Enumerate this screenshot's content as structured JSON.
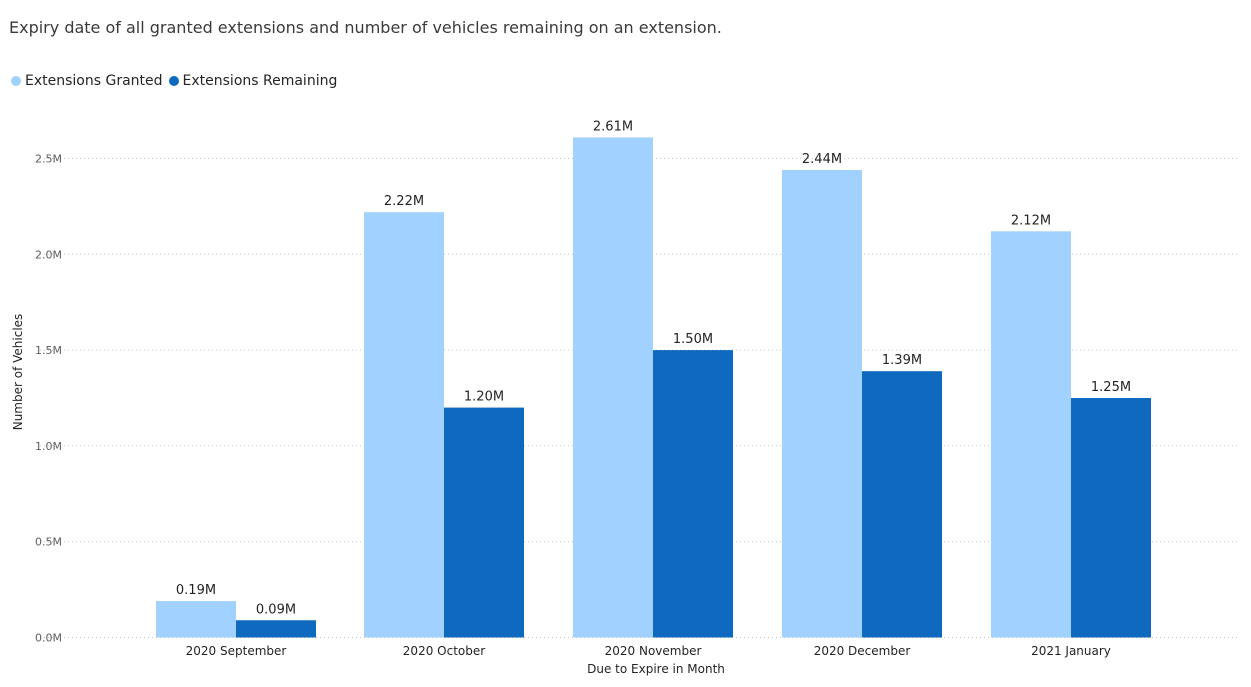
{
  "colors": {
    "granted": "#a0d1ff",
    "remaining": "#0f6abf",
    "gridline": "#c8c6c4"
  },
  "chart_data": {
    "type": "bar",
    "title": "Expiry date of all granted extensions and number of vehicles remaining on an extension.",
    "xlabel": "Due to Expire in Month",
    "ylabel": "Number of Vehicles",
    "categories": [
      "2020 September",
      "2020 October",
      "2020 November",
      "2020 December",
      "2021 January"
    ],
    "series": [
      {
        "name": "Extensions Granted",
        "values": [
          0.19,
          2.22,
          2.61,
          2.44,
          2.12
        ],
        "labels": [
          "0.19M",
          "2.22M",
          "2.61M",
          "2.44M",
          "2.12M"
        ]
      },
      {
        "name": "Extensions Remaining",
        "values": [
          0.09,
          1.2,
          1.5,
          1.39,
          1.25
        ],
        "labels": [
          "0.09M",
          "1.20M",
          "1.50M",
          "1.39M",
          "1.25M"
        ]
      }
    ],
    "ylim": [
      0,
      2.5
    ],
    "yticks": [
      0,
      0.5,
      1.0,
      1.5,
      2.0,
      2.5
    ],
    "ytick_labels": [
      "0.0M",
      "0.5M",
      "1.0M",
      "1.5M",
      "2.0M",
      "2.5M"
    ],
    "grid": true,
    "legend_position": "top-left"
  }
}
